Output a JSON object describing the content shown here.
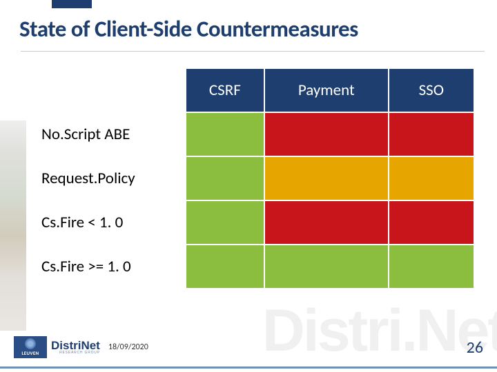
{
  "title": "State of Client-Side Countermeasures",
  "table": {
    "columns": [
      "CSRF",
      "Payment",
      "SSO"
    ],
    "rowLabels": [
      "No.Script ABE",
      "Request.Policy",
      "Cs.Fire < 1. 0",
      "Cs.Fire >= 1. 0"
    ],
    "cellColors": [
      [
        "#8bbe3f",
        "#c8141b",
        "#c8141b"
      ],
      [
        "#8bbe3f",
        "#e7a500",
        "#e7a500"
      ],
      [
        "#8bbe3f",
        "#c8141b",
        "#c8141b"
      ],
      [
        "#8bbe3f",
        "#8bbe3f",
        "#8bbe3f"
      ]
    ],
    "headerBg": "#1d3e6e",
    "headerTextColor": "#ffffff"
  },
  "colors": {
    "brand": "#1d3e6e",
    "green": "#8bbe3f",
    "red": "#c8141b",
    "amber": "#e7a500"
  },
  "watermark": "Distri.Net",
  "footer": {
    "leuven": "LEUVEN",
    "distrinetMain": "DistriNet",
    "distrinetSub": "RESEARCH GROUP",
    "date": "18/09/2020",
    "page": "26"
  }
}
